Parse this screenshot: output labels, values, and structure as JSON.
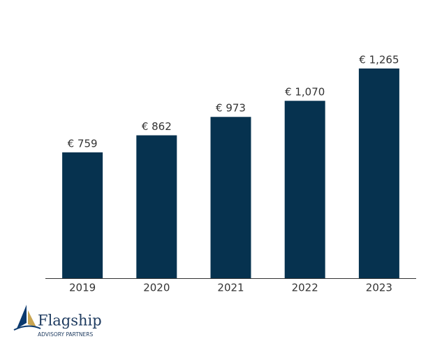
{
  "chart_data": {
    "type": "bar",
    "categories": [
      "2019",
      "2020",
      "2021",
      "2022",
      "2023"
    ],
    "values": [
      759,
      862,
      973,
      1070,
      1265
    ],
    "value_labels": [
      "€ 759",
      "€ 862",
      "€ 973",
      "€ 1,070",
      "€ 1,265"
    ],
    "color": "#06324f"
  },
  "logo": {
    "name": "Flagship",
    "tagline": "ADVISORY PARTNERS"
  }
}
